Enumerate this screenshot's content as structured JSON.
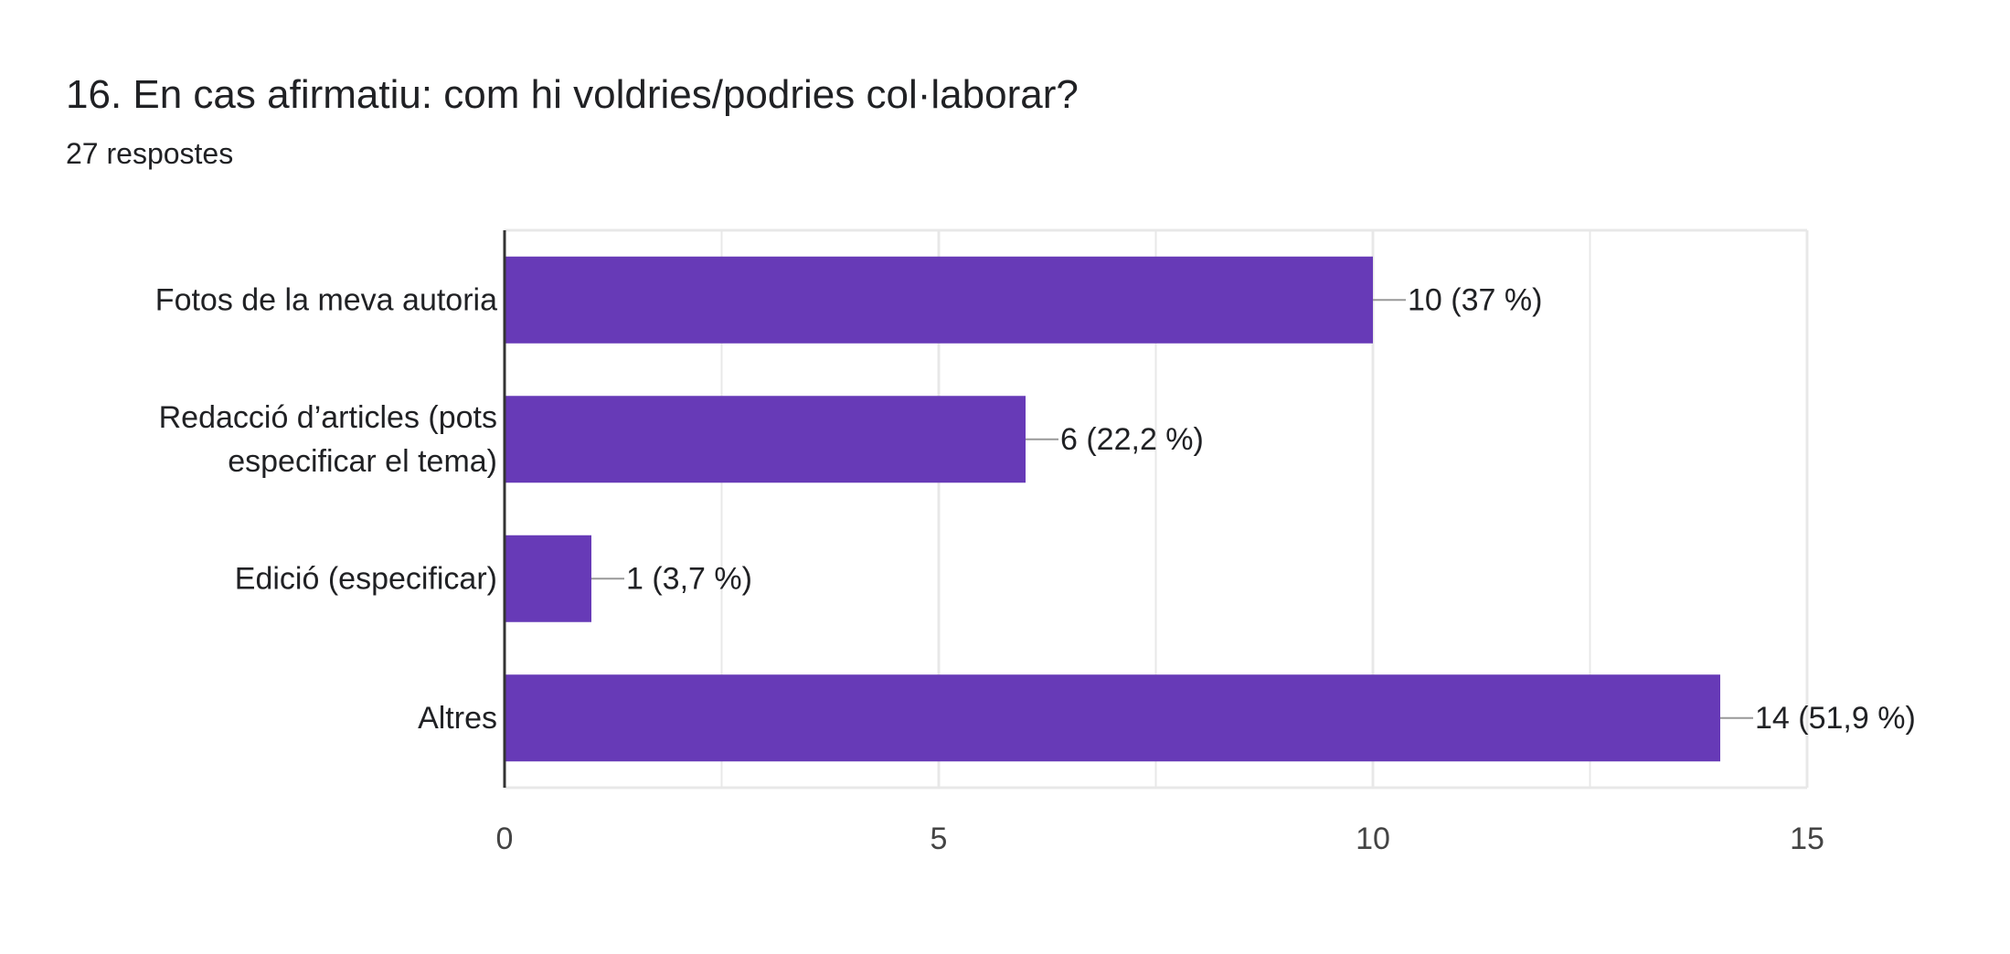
{
  "question": {
    "title": "16. En cas afirmatiu: com hi voldries/podries col·laborar?",
    "responses": "27 respostes"
  },
  "colors": {
    "bar": "#673ab7",
    "text": "#202124",
    "axis_tick_text": "#444444",
    "grid": "#e8e8e8",
    "axis": "#333333",
    "leader": "#999999"
  },
  "chart_data": {
    "type": "bar",
    "orientation": "horizontal",
    "categories": [
      [
        "Fotos de la meva autoria"
      ],
      [
        "Redacció d’articles (pots",
        "especificar el tema)"
      ],
      [
        "Edició (especificar)"
      ],
      [
        "Altres"
      ]
    ],
    "values": [
      10,
      6,
      1,
      14
    ],
    "data_labels": [
      "10 (37 %)",
      "6 (22,2 %)",
      "1 (3,7 %)",
      "14 (51,9 %)"
    ],
    "xlim": [
      0,
      15
    ],
    "x_ticks": [
      0,
      5,
      10,
      15
    ],
    "x_tick_labels": [
      "0",
      "5",
      "10",
      "15"
    ],
    "grid": true,
    "xlabel": "",
    "ylabel": ""
  }
}
